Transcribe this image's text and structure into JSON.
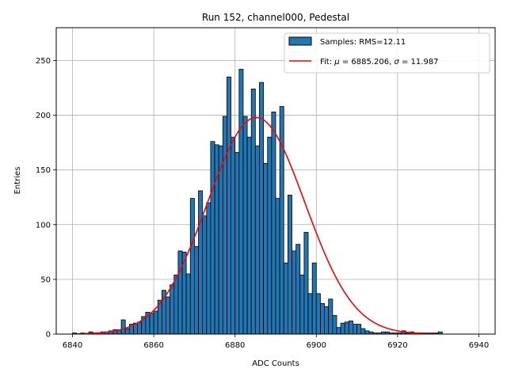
{
  "chart_data": {
    "type": "bar",
    "title": "Run 152, channel000, Pedestal",
    "xlabel": "ADC Counts",
    "ylabel": "Entries",
    "xlim": [
      6836,
      6944
    ],
    "ylim": [
      0,
      280
    ],
    "xticks": [
      6840,
      6860,
      6880,
      6900,
      6920,
      6940
    ],
    "yticks": [
      0,
      50,
      100,
      150,
      200,
      250
    ],
    "grid": true,
    "legend_position": "top-right",
    "bin_width": 1,
    "histogram": {
      "name": "Samples: RMS=12.11",
      "color": "#1f77b4",
      "edgecolor": "#000000",
      "bin_starts": [
        6840,
        6841,
        6842,
        6843,
        6844,
        6845,
        6846,
        6847,
        6848,
        6849,
        6850,
        6851,
        6852,
        6853,
        6854,
        6855,
        6856,
        6857,
        6858,
        6859,
        6860,
        6861,
        6862,
        6863,
        6864,
        6865,
        6866,
        6867,
        6868,
        6869,
        6870,
        6871,
        6872,
        6873,
        6874,
        6875,
        6876,
        6877,
        6878,
        6879,
        6880,
        6881,
        6882,
        6883,
        6884,
        6885,
        6886,
        6887,
        6888,
        6889,
        6890,
        6891,
        6892,
        6893,
        6894,
        6895,
        6896,
        6897,
        6898,
        6899,
        6900,
        6901,
        6902,
        6903,
        6904,
        6905,
        6906,
        6907,
        6908,
        6909,
        6910,
        6911,
        6912,
        6913,
        6914,
        6915,
        6916,
        6917,
        6918,
        6919,
        6920,
        6921,
        6922,
        6923,
        6924,
        6925,
        6926,
        6927,
        6928,
        6929,
        6930
      ],
      "counts": [
        1,
        0,
        1,
        0,
        2,
        1,
        1,
        2,
        2,
        3,
        4,
        4,
        13,
        5,
        9,
        10,
        11,
        16,
        20,
        19,
        21,
        31,
        40,
        34,
        45,
        54,
        76,
        75,
        55,
        124,
        80,
        131,
        108,
        120,
        176,
        173,
        172,
        199,
        235,
        180,
        166,
        242,
        199,
        180,
        224,
        172,
        230,
        156,
        180,
        203,
        124,
        208,
        65,
        127,
        76,
        82,
        54,
        93,
        37,
        65,
        37,
        28,
        25,
        32,
        17,
        6,
        10,
        11,
        12,
        9,
        9,
        5,
        3,
        2,
        1,
        1,
        2,
        2,
        1,
        1,
        1,
        3,
        1,
        2,
        1,
        1,
        1,
        1,
        1,
        1,
        2
      ],
      "counts_end_correction": [
        1,
        0,
        1,
        0,
        2,
        1,
        1,
        2,
        2,
        3,
        4,
        4,
        13,
        5,
        9,
        10,
        11,
        16,
        20,
        19,
        21,
        31,
        40,
        34,
        45,
        54,
        76,
        75,
        55,
        124,
        80,
        131,
        108,
        120,
        176,
        173,
        172,
        199,
        235,
        180,
        166,
        242,
        199,
        180,
        224,
        172,
        230,
        156,
        180,
        203,
        124,
        208,
        65,
        127,
        76,
        82,
        54,
        93,
        37,
        65,
        37,
        28,
        25,
        32,
        17,
        6,
        10,
        11,
        12,
        9,
        9,
        5,
        3,
        2,
        1,
        1,
        2,
        2,
        1,
        1,
        1,
        3,
        1,
        2,
        1,
        1,
        1,
        1,
        1,
        1,
        2
      ]
    },
    "fit": {
      "name": "Fit: μ = 6885.206, σ = 11.987",
      "label_parts": [
        "Fit: ",
        "μ",
        " = 6885.206, ",
        "σ",
        " = 11.987"
      ],
      "color": "#ff0000",
      "mu": 6885.206,
      "sigma": 11.987,
      "amplitude": 198,
      "x_range": [
        6840,
        6930
      ]
    }
  }
}
